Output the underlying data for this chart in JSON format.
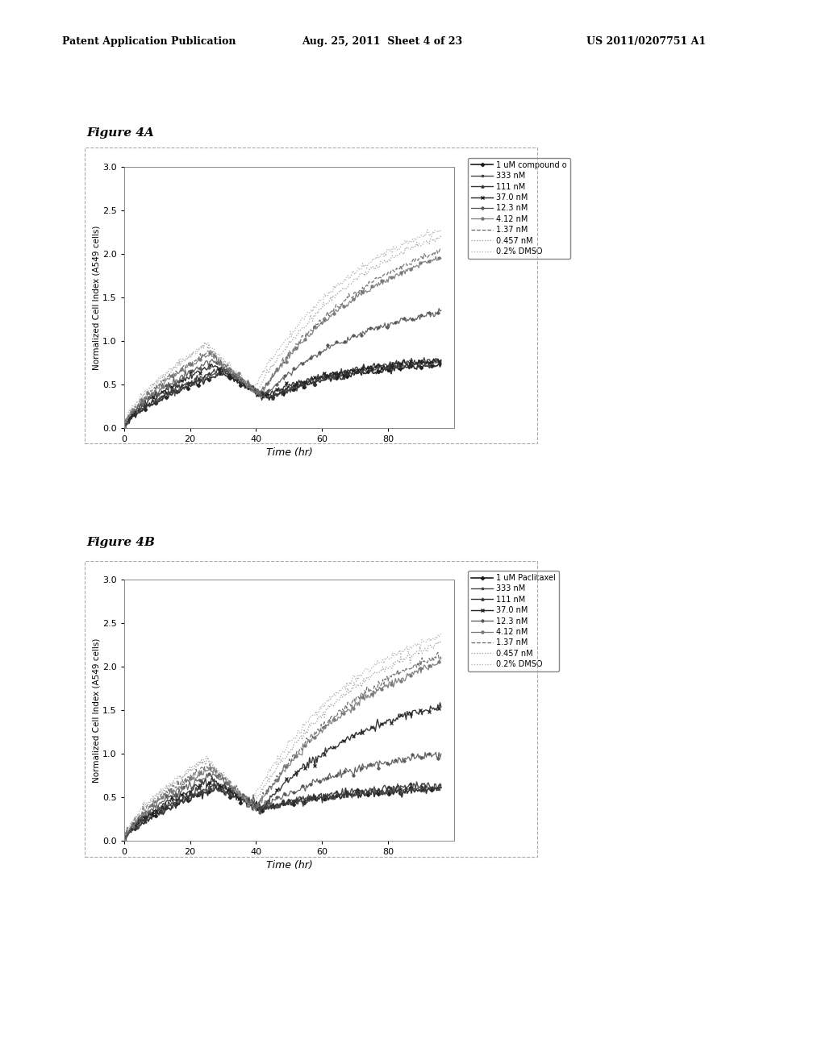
{
  "header_left": "Patent Application Publication",
  "header_mid": "Aug. 25, 2011  Sheet 4 of 23",
  "header_right": "US 2011/0207751 A1",
  "fig4A_title": "Figure 4A",
  "fig4B_title": "Figure 4B",
  "xlabel": "Time (hr)",
  "ylabel": "Normalized Cell Index (A549 cells)",
  "xlim": [
    0,
    100
  ],
  "ylim": [
    0,
    3
  ],
  "yticks": [
    0,
    0.5,
    1,
    1.5,
    2,
    2.5,
    3
  ],
  "xticks": [
    0,
    20,
    40,
    60,
    80
  ],
  "legend_labels_A": [
    "1 uM compound o",
    "333 nM",
    "111 nM",
    "37.0 nM",
    "12.3 nM",
    "4.12 nM",
    "1.37 nM",
    "0.457 nM",
    "0.2% DMSO"
  ],
  "legend_labels_B": [
    "1 uM Paclitaxel",
    "333 nM",
    "111 nM",
    "37.0 nM",
    "12.3 nM",
    "4.12 nM",
    "1.37 nM",
    "0.457 nM",
    "0.2% DMSO"
  ],
  "bg_color": "#ffffff",
  "plot_bg": "#ffffff"
}
